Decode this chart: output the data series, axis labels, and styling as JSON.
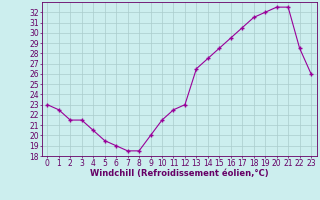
{
  "hours": [
    0,
    1,
    2,
    3,
    4,
    5,
    6,
    7,
    8,
    9,
    10,
    11,
    12,
    13,
    14,
    15,
    16,
    17,
    18,
    19,
    20,
    21,
    22,
    23
  ],
  "windchill": [
    23,
    22.5,
    21.5,
    21.5,
    20.5,
    19.5,
    19.0,
    18.5,
    18.5,
    20.0,
    21.5,
    22.5,
    23.0,
    26.5,
    27.5,
    28.5,
    29.5,
    30.5,
    31.5,
    32.0,
    32.5,
    32.5,
    28.5,
    26.0
  ],
  "line_color": "#990099",
  "marker": "+",
  "bg_color": "#cceeee",
  "grid_color": "#aacccc",
  "text_color": "#660066",
  "xlabel": "Windchill (Refroidissement éolien,°C)",
  "ylim": [
    18,
    33
  ],
  "yticks": [
    18,
    19,
    20,
    21,
    22,
    23,
    24,
    25,
    26,
    27,
    28,
    29,
    30,
    31,
    32
  ],
  "xlim": [
    -0.5,
    23.5
  ],
  "xticks": [
    0,
    1,
    2,
    3,
    4,
    5,
    6,
    7,
    8,
    9,
    10,
    11,
    12,
    13,
    14,
    15,
    16,
    17,
    18,
    19,
    20,
    21,
    22,
    23
  ],
  "tick_fontsize": 5.5,
  "xlabel_fontsize": 6.0
}
